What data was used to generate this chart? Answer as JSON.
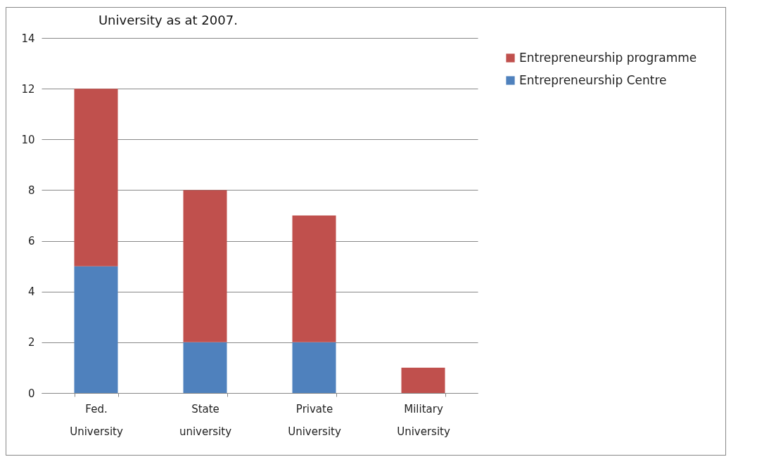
{
  "chart_data": {
    "type": "bar",
    "title": "University as at 2007.",
    "categories": [
      "Fed. University",
      "State university",
      "Private University",
      "Military University"
    ],
    "stacked": true,
    "series": [
      {
        "name": "Entrepreneurship Centre",
        "color": "#4f81bd",
        "values": [
          5,
          2,
          2,
          0
        ]
      },
      {
        "name": "Entrepreneurship programme",
        "color": "#c0504d",
        "values": [
          7,
          6,
          5,
          1
        ]
      }
    ],
    "ylim": [
      0,
      14
    ],
    "yticks": [
      0,
      2,
      4,
      6,
      8,
      10,
      12,
      14
    ],
    "grid": "y",
    "legend": "right"
  }
}
